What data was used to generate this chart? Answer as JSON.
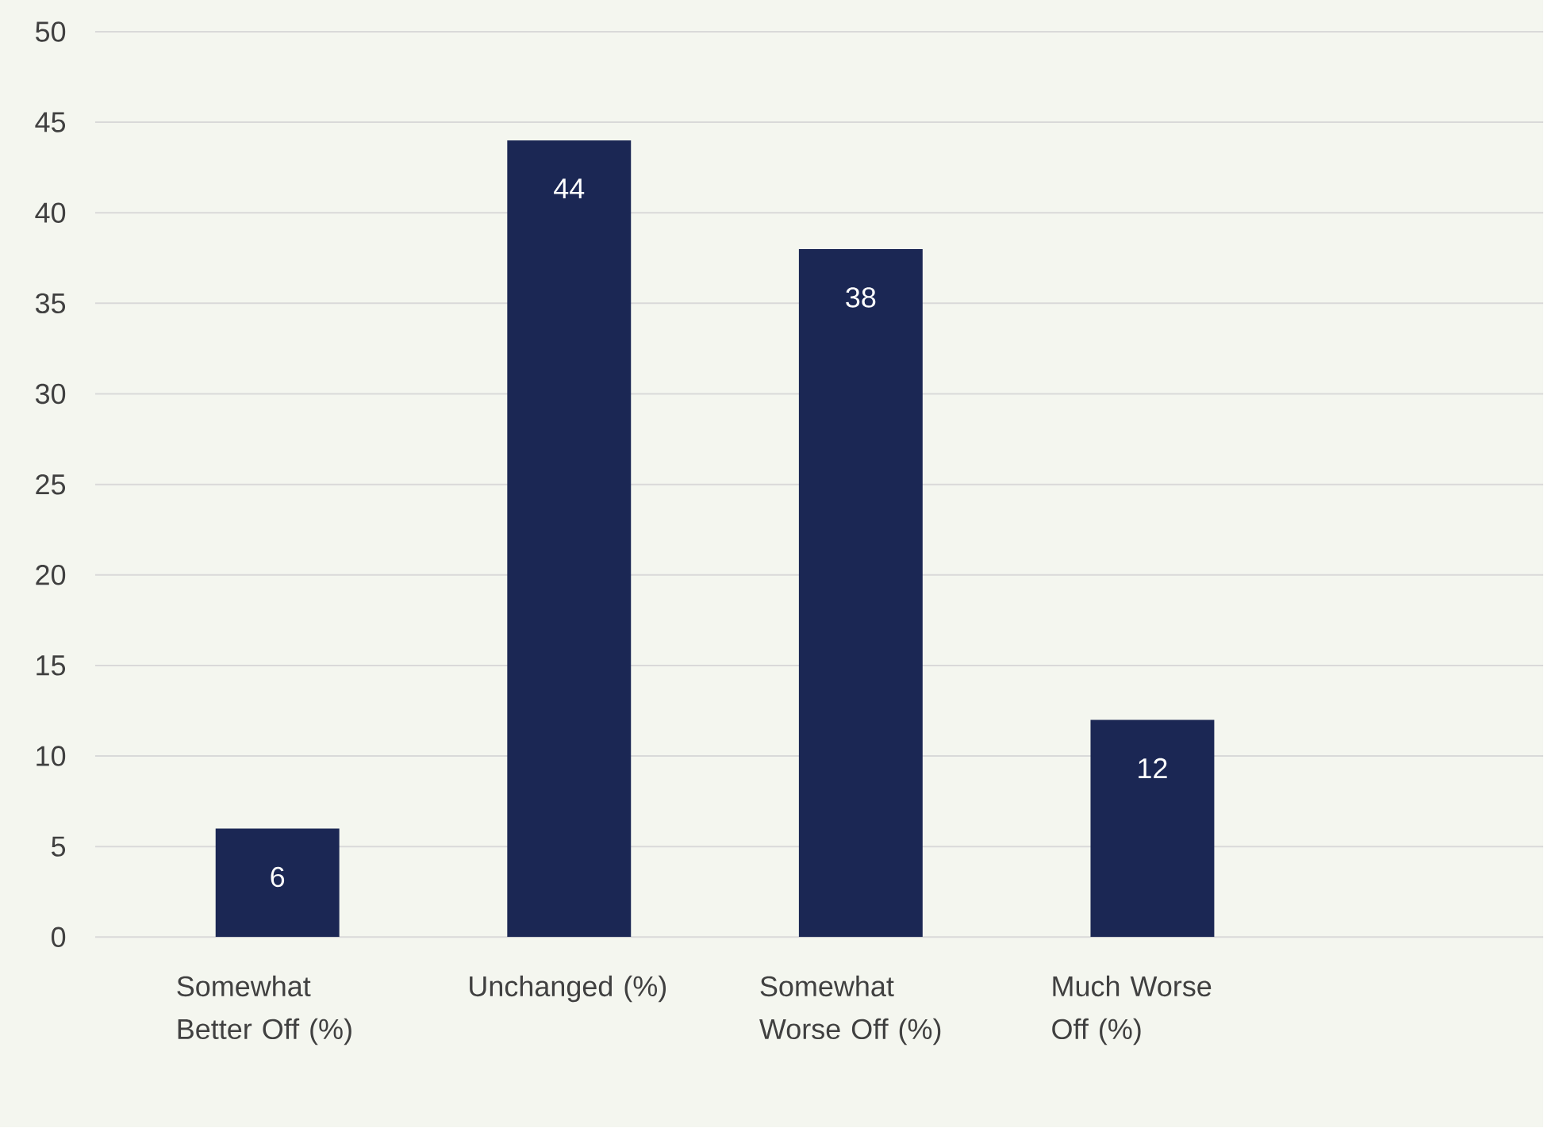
{
  "chart_data": {
    "type": "bar",
    "categories": [
      "Somewhat Better Off (%)",
      "Unchanged (%)",
      "Somewhat Worse Off (%)",
      "Much Worse Off (%)"
    ],
    "values": [
      6,
      44,
      38,
      12
    ],
    "color": "#1b2754",
    "ylim": [
      0,
      50
    ],
    "yticks": [
      0,
      5,
      10,
      15,
      20,
      25,
      30,
      35,
      40,
      45,
      50
    ],
    "grid": "y",
    "data_labels": true
  }
}
